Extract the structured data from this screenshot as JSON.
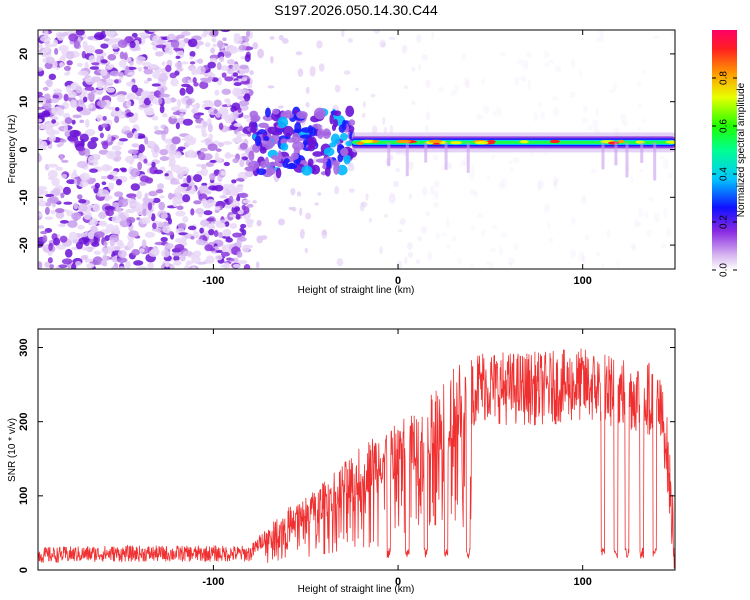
{
  "title": "S197.2026.050.14.30.C44",
  "colors": {
    "snr_line": "#f03030",
    "axis": "#000000"
  },
  "chart_data": [
    {
      "type": "heatmap",
      "title": "S197.2026.050.14.30.C44",
      "xlabel": "Height of straight line (km)",
      "ylabel": "Frequency (Hz)",
      "xlim": [
        -195,
        150
      ],
      "ylim": [
        -25,
        25
      ],
      "xticks": [
        -100,
        0,
        100
      ],
      "yticks": [
        -20,
        -10,
        0,
        10,
        20
      ],
      "xtick_labels": [
        "-100",
        "0",
        "100"
      ],
      "ytick_labels": [
        "-20",
        "-10",
        "0",
        "10",
        "20"
      ],
      "colorbar": {
        "label": "Normalized spectral amplitude",
        "range": [
          0.0,
          1.0
        ],
        "ticks": [
          0.0,
          0.2,
          0.4,
          0.6,
          0.8
        ],
        "tick_labels": [
          "0.0",
          "0.2",
          "0.4",
          "0.6",
          "0.8"
        ]
      },
      "features": [
        {
          "name": "noise",
          "x_range": [
            -195,
            -80
          ],
          "freq_range": [
            -25,
            25
          ],
          "amplitude": 0.12
        },
        {
          "name": "transition",
          "x_range": [
            -80,
            -25
          ],
          "freq_range": [
            -5,
            8
          ],
          "amplitude": 0.3
        },
        {
          "name": "carrier",
          "x_range": [
            -25,
            150
          ],
          "freq": 1.5,
          "amplitude": 0.9
        }
      ]
    },
    {
      "type": "line",
      "xlabel": "Height of straight line (km)",
      "ylabel": "SNR (10 * v/v)",
      "xlim": [
        -195,
        150
      ],
      "ylim": [
        0,
        325
      ],
      "xticks": [
        -100,
        0,
        100
      ],
      "yticks": [
        0,
        100,
        200,
        300
      ],
      "xtick_labels": [
        "-100",
        "0",
        "100"
      ],
      "ytick_labels": [
        "0",
        "100",
        "200",
        "300"
      ],
      "series": [
        {
          "name": "SNR",
          "x": [
            -195,
            -160,
            -120,
            -80,
            -72,
            -60,
            -45,
            -30,
            -15,
            0,
            10,
            20,
            30,
            38,
            45,
            60,
            80,
            100,
            110,
            120,
            130,
            140,
            145,
            150
          ],
          "level": [
            20,
            22,
            22,
            22,
            45,
            70,
            90,
            120,
            150,
            175,
            190,
            210,
            230,
            240,
            250,
            245,
            245,
            250,
            245,
            240,
            235,
            230,
            180,
            20
          ],
          "dropouts": [
            -5,
            5,
            15,
            26,
            38,
            111,
            118,
            124,
            132,
            139
          ]
        }
      ]
    }
  ]
}
